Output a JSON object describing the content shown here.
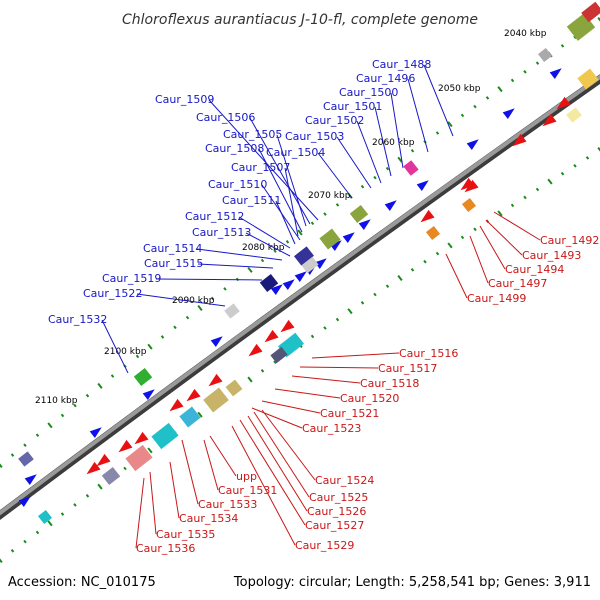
{
  "title": "Chloroflexus aurantiacus J-10-fl, complete genome",
  "footer": {
    "accession": "Accession: NC_010175",
    "summary": "Topology: circular; Length: 5,258,541 bp; Genes: 3,911"
  },
  "colors": {
    "backbone": "#7a7a7a",
    "forward": "#1010e8",
    "reverse": "#e81010",
    "tick": "#1a8a1a",
    "label_forward": "#1818c8",
    "label_reverse": "#c81818"
  },
  "ticks": [
    "2040 kbp",
    "2050 kbp",
    "2060 kbp",
    "2070 kbp",
    "2080 kbp",
    "2090 kbp",
    "2100 kbp",
    "2110 kbp"
  ],
  "forward_labels": [
    "Caur_1488",
    "Caur_1496",
    "Caur_1500",
    "Caur_1501",
    "Caur_1502",
    "Caur_1503",
    "Caur_1504",
    "Caur_1509",
    "Caur_1506",
    "Caur_1505",
    "Caur_1508",
    "Caur_1507",
    "Caur_1510",
    "Caur_1511",
    "Caur_1512",
    "Caur_1513",
    "Caur_1514",
    "Caur_1515",
    "Caur_1519",
    "Caur_1522",
    "Caur_1532"
  ],
  "reverse_labels": [
    "Caur_1492",
    "Caur_1493",
    "Caur_1494",
    "Caur_1497",
    "Caur_1499",
    "Caur_1516",
    "Caur_1517",
    "Caur_1518",
    "Caur_1520",
    "Caur_1521",
    "Caur_1523",
    "Caur_1524",
    "Caur_1525",
    "Caur_1526",
    "Caur_1527",
    "Caur_1529",
    "upp",
    "Caur_1531",
    "Caur_1533",
    "Caur_1534",
    "Caur_1535",
    "Caur_1536"
  ]
}
